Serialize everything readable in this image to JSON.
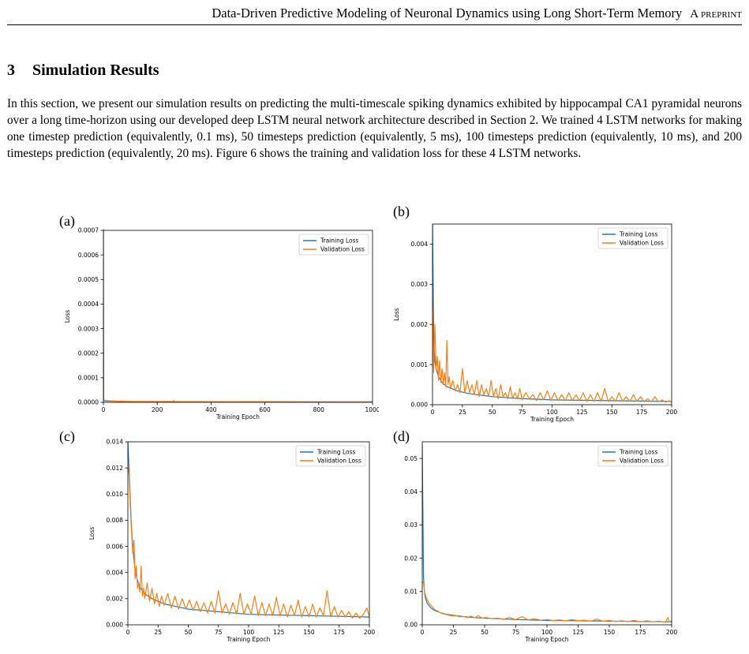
{
  "header": {
    "title": "Data-Driven Predictive Modeling of Neuronal Dynamics using Long Short-Term Memory",
    "tag": "A preprint"
  },
  "section": {
    "number": "3",
    "title": "Simulation Results"
  },
  "paragraph": "In this section, we present our simulation results on predicting the multi-timescale spiking dynamics exhibited by hippocampal CA1 pyramidal neurons over a long time-horizon using our developed deep LSTM neural network architecture described in Section 2. We trained 4 LSTM networks for making one timestep prediction (equivalently, 0.1 ms), 50 timesteps prediction (equivalently, 5 ms), 100 timesteps prediction (equivalently, 10 ms), and 200 timesteps prediction (equivalently, 20 ms). Figure 6 shows the training and validation loss for these 4 LSTM networks.",
  "colors": {
    "training": "#1f77b4",
    "validation": "#ff7f0e"
  },
  "chart_data": [
    {
      "panel": "(a)",
      "type": "line",
      "xlabel": "Training Epoch",
      "ylabel": "Loss",
      "xlim": [
        0,
        1000
      ],
      "ylim": [
        0,
        0.0007
      ],
      "xticks": [
        0,
        200,
        400,
        600,
        800,
        1000
      ],
      "xtick_labels": [
        "0",
        "200",
        "400",
        "600",
        "800",
        "1000"
      ],
      "yticks": [
        0,
        0.0001,
        0.0002,
        0.0003,
        0.0004,
        0.0005,
        0.0006,
        0.0007
      ],
      "ytick_labels": [
        "0.0000",
        "0.0001",
        "0.0002",
        "0.0003",
        "0.0004",
        "0.0005",
        "0.0006",
        "0.0007"
      ],
      "legend": [
        "Training Loss",
        "Validation Loss"
      ],
      "legend_position": "top-right",
      "series": [
        {
          "name": "Training Loss",
          "x": [
            0,
            1,
            2,
            5,
            10,
            50,
            100,
            300,
            600,
            1000
          ],
          "y": [
            0.00071,
            1e-05,
            8e-06,
            6e-06,
            5e-06,
            4e-06,
            3e-06,
            3e-06,
            2e-06,
            2e-06
          ]
        },
        {
          "name": "Validation Loss",
          "x": [
            0,
            1,
            2,
            5,
            10,
            50,
            100,
            260,
            262,
            264,
            400,
            600,
            800,
            1000
          ],
          "y": [
            1.5e-05,
            1.3e-05,
            1e-05,
            8e-06,
            7e-06,
            5e-06,
            4e-06,
            4e-06,
            8e-06,
            4e-06,
            3e-06,
            3e-06,
            2e-06,
            2e-06
          ]
        }
      ]
    },
    {
      "panel": "(b)",
      "type": "line",
      "xlabel": "Training Epoch",
      "ylabel": "Loss",
      "xlim": [
        0,
        200
      ],
      "ylim": [
        0,
        0.0045
      ],
      "xticks": [
        0,
        25,
        50,
        75,
        100,
        125,
        150,
        175,
        200
      ],
      "xtick_labels": [
        "0",
        "25",
        "50",
        "75",
        "100",
        "125",
        "150",
        "175",
        "200"
      ],
      "yticks": [
        0,
        0.001,
        0.002,
        0.003,
        0.004
      ],
      "ytick_labels": [
        "0.000",
        "0.001",
        "0.002",
        "0.003",
        "0.004"
      ],
      "legend": [
        "Training Loss",
        "Validation Loss"
      ],
      "legend_position": "top-right",
      "series": [
        {
          "name": "Training Loss",
          "x": [
            0,
            1,
            2,
            3,
            5,
            8,
            12,
            20,
            30,
            50,
            75,
            100,
            150,
            200
          ],
          "y": [
            0.0045,
            0.0016,
            0.0011,
            0.0009,
            0.0007,
            0.00055,
            0.00045,
            0.00035,
            0.00028,
            0.0002,
            0.00015,
            0.00012,
            0.0001,
            8e-05
          ]
        },
        {
          "name": "Validation Loss",
          "x": [
            0,
            1,
            2,
            3,
            4,
            5,
            6,
            7,
            8,
            9,
            10,
            11,
            12,
            13,
            14,
            15,
            17,
            19,
            21,
            23,
            25,
            27,
            29,
            31,
            33,
            35,
            37,
            39,
            41,
            43,
            45,
            47,
            49,
            51,
            53,
            55,
            57,
            59,
            61,
            63,
            65,
            67,
            69,
            71,
            73,
            75,
            78,
            81,
            84,
            87,
            90,
            93,
            96,
            99,
            102,
            105,
            108,
            111,
            114,
            117,
            120,
            123,
            126,
            129,
            132,
            135,
            138,
            141,
            144,
            147,
            150,
            153,
            156,
            159,
            162,
            165,
            168,
            171,
            174,
            177,
            180,
            183,
            186,
            189,
            192,
            195,
            198,
            200
          ],
          "y": [
            0.0026,
            0.0008,
            0.002,
            0.0009,
            0.0012,
            0.0006,
            0.0011,
            0.00055,
            0.0009,
            0.0005,
            0.0008,
            0.00045,
            0.0016,
            0.0005,
            0.0007,
            0.0004,
            0.0006,
            0.00035,
            0.0005,
            0.0003,
            0.0009,
            0.0003,
            0.0006,
            0.0003,
            0.0005,
            0.00025,
            0.0006,
            0.0002,
            0.0005,
            0.00025,
            0.0004,
            0.0002,
            0.0006,
            0.0002,
            0.0004,
            0.00015,
            0.0005,
            0.0002,
            0.0003,
            0.00015,
            0.00045,
            0.00015,
            0.0003,
            0.00015,
            0.0004,
            0.00012,
            0.0003,
            0.00015,
            0.00025,
            0.0001,
            0.0003,
            0.00012,
            0.00035,
            0.0001,
            0.0003,
            0.0001,
            0.00025,
            0.0001,
            0.0003,
            0.0001,
            0.00025,
            0.0001,
            0.0003,
            8e-05,
            0.00025,
            8e-05,
            0.0003,
            8e-05,
            0.0004,
            8e-05,
            0.0002,
            8e-05,
            0.0003,
            8e-05,
            0.0002,
            8e-05,
            0.00025,
            8e-05,
            0.0002,
            7e-05,
            0.00015,
            7e-05,
            0.0002,
            7e-05,
            0.00012,
            6e-05,
            0.0001,
            6e-05
          ]
        }
      ]
    },
    {
      "panel": "(c)",
      "type": "line",
      "xlabel": "Training Epoch",
      "ylabel": "Loss",
      "xlim": [
        0,
        200
      ],
      "ylim": [
        0,
        0.014
      ],
      "xticks": [
        0,
        25,
        50,
        75,
        100,
        125,
        150,
        175,
        200
      ],
      "xtick_labels": [
        "0",
        "25",
        "50",
        "75",
        "100",
        "125",
        "150",
        "175",
        "200"
      ],
      "yticks": [
        0,
        0.002,
        0.004,
        0.006,
        0.008,
        0.01,
        0.012,
        0.014
      ],
      "ytick_labels": [
        "0.000",
        "0.002",
        "0.004",
        "0.006",
        "0.008",
        "0.010",
        "0.012",
        "0.014"
      ],
      "legend": [
        "Training Loss",
        "Validation Loss"
      ],
      "legend_position": "top-right",
      "series": [
        {
          "name": "Training Loss",
          "x": [
            0,
            1,
            2,
            3,
            4,
            5,
            6,
            8,
            10,
            12,
            15,
            20,
            25,
            30,
            40,
            50,
            75,
            100,
            125,
            150,
            175,
            200
          ],
          "y": [
            0.014,
            0.012,
            0.0095,
            0.0075,
            0.006,
            0.005,
            0.0042,
            0.0034,
            0.0029,
            0.0026,
            0.0023,
            0.002,
            0.0018,
            0.0016,
            0.0014,
            0.0012,
            0.001,
            0.0008,
            0.00075,
            0.0007,
            0.00065,
            0.0006
          ]
        },
        {
          "name": "Validation Loss",
          "x": [
            0,
            1,
            2,
            3,
            4,
            5,
            6,
            7,
            8,
            9,
            10,
            11,
            12,
            13,
            14,
            16,
            18,
            20,
            22,
            24,
            26,
            28,
            30,
            33,
            36,
            39,
            42,
            45,
            48,
            51,
            54,
            57,
            60,
            63,
            66,
            69,
            72,
            75,
            78,
            81,
            84,
            87,
            90,
            93,
            96,
            99,
            102,
            105,
            108,
            111,
            114,
            117,
            120,
            123,
            126,
            129,
            132,
            135,
            138,
            141,
            144,
            147,
            150,
            153,
            156,
            159,
            162,
            165,
            168,
            171,
            174,
            177,
            180,
            183,
            186,
            189,
            192,
            195,
            198,
            200
          ],
          "y": [
            0.012,
            0.0115,
            0.009,
            0.0072,
            0.0055,
            0.0065,
            0.0035,
            0.0045,
            0.0028,
            0.0032,
            0.0025,
            0.0045,
            0.0022,
            0.0028,
            0.002,
            0.0032,
            0.0018,
            0.0028,
            0.0016,
            0.0024,
            0.0014,
            0.0022,
            0.0015,
            0.0024,
            0.0013,
            0.0022,
            0.0012,
            0.002,
            0.0012,
            0.0019,
            0.0011,
            0.0018,
            0.001,
            0.0017,
            0.0009,
            0.0018,
            0.0009,
            0.0026,
            0.0009,
            0.0016,
            0.0008,
            0.0017,
            0.0008,
            0.0024,
            0.0008,
            0.0016,
            0.0008,
            0.0022,
            0.0007,
            0.0017,
            0.0007,
            0.0016,
            0.0007,
            0.0021,
            0.0007,
            0.0016,
            0.0006,
            0.0015,
            0.0007,
            0.0019,
            0.0006,
            0.0014,
            0.0006,
            0.0016,
            0.0006,
            0.0013,
            0.0007,
            0.0026,
            0.0006,
            0.0014,
            0.0006,
            0.0011,
            0.0006,
            0.001,
            0.0005,
            0.0009,
            0.0005,
            0.0008,
            0.0013,
            0.0006
          ]
        }
      ]
    },
    {
      "panel": "(d)",
      "type": "line",
      "xlabel": "Training Epoch",
      "ylabel": "Loss",
      "xlim": [
        0,
        200
      ],
      "ylim": [
        0,
        0.055
      ],
      "xticks": [
        0,
        25,
        50,
        75,
        100,
        125,
        150,
        175,
        200
      ],
      "xtick_labels": [
        "0",
        "25",
        "50",
        "75",
        "100",
        "125",
        "150",
        "175",
        "200"
      ],
      "yticks": [
        0,
        0.01,
        0.02,
        0.03,
        0.04,
        0.05
      ],
      "ytick_labels": [
        "0.00",
        "0.01",
        "0.02",
        "0.03",
        "0.04",
        "0.05"
      ],
      "legend": [
        "Training Loss",
        "Validation Loss"
      ],
      "legend_position": "top-right",
      "series": [
        {
          "name": "Training Loss",
          "x": [
            0,
            1,
            2,
            3,
            4,
            6,
            8,
            10,
            15,
            20,
            30,
            40,
            50,
            75,
            100,
            125,
            150,
            175,
            200
          ],
          "y": [
            0.054,
            0.014,
            0.009,
            0.0075,
            0.0065,
            0.0055,
            0.0048,
            0.0043,
            0.0036,
            0.0031,
            0.0026,
            0.0022,
            0.002,
            0.0016,
            0.0013,
            0.0012,
            0.0011,
            0.001,
            0.0009
          ]
        },
        {
          "name": "Validation Loss",
          "x": [
            0,
            1,
            2,
            3,
            4,
            5,
            6,
            8,
            10,
            12,
            15,
            18,
            21,
            24,
            27,
            30,
            33,
            36,
            39,
            42,
            45,
            48,
            51,
            55,
            60,
            65,
            70,
            75,
            80,
            85,
            90,
            95,
            100,
            105,
            110,
            115,
            120,
            125,
            130,
            135,
            140,
            145,
            150,
            155,
            160,
            165,
            170,
            175,
            180,
            185,
            190,
            195,
            197,
            198,
            200
          ],
          "y": [
            0.013,
            0.0125,
            0.0095,
            0.0085,
            0.0075,
            0.0068,
            0.0062,
            0.0055,
            0.0045,
            0.0042,
            0.0035,
            0.0032,
            0.0029,
            0.0027,
            0.0028,
            0.0024,
            0.0025,
            0.0022,
            0.0026,
            0.0021,
            0.0028,
            0.002,
            0.0022,
            0.0019,
            0.002,
            0.0017,
            0.0022,
            0.0016,
            0.0025,
            0.0015,
            0.0018,
            0.0014,
            0.0016,
            0.0013,
            0.0015,
            0.0012,
            0.0016,
            0.0012,
            0.0014,
            0.0011,
            0.0017,
            0.0011,
            0.0013,
            0.001,
            0.0012,
            0.001,
            0.0013,
            0.0009,
            0.0012,
            0.0009,
            0.0011,
            0.0008,
            0.0022,
            0.0009,
            0.0012
          ]
        }
      ]
    }
  ]
}
